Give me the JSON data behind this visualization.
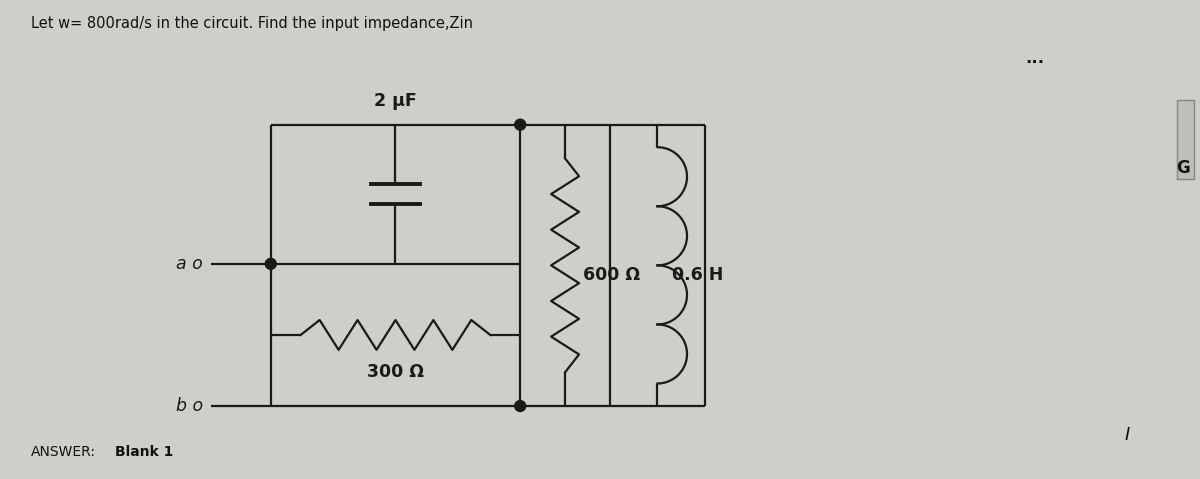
{
  "title": "Let w= 800rad/s in the circuit. Find the input impedance,Zin",
  "bg_color": "#d0cec8",
  "line_color": "#1a1a1a",
  "capacitor_label": "2 μF",
  "resistor1_label": "300 Ω",
  "resistor2_label": "600 Ω",
  "inductor_label": "0.6 H",
  "node_a_label": "a o",
  "node_b_label": "b o",
  "dots_text": "...",
  "I_label": "I",
  "G_label": "G",
  "answer_label": "ANSWER:",
  "blank_label": "Blank 1"
}
